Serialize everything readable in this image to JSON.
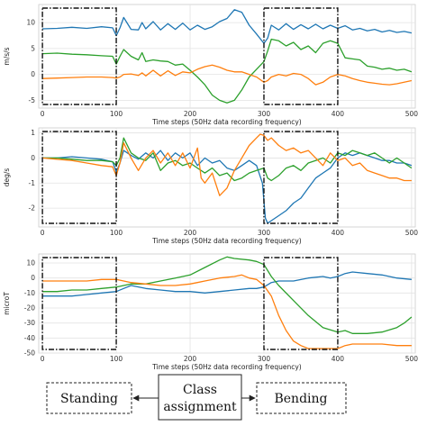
{
  "chart_data": [
    {
      "type": "line",
      "xlabel": "Time steps (50Hz data recording frequency)",
      "ylabel": "m/s/s",
      "xlim": [
        -5,
        505
      ],
      "ylim": [
        -6.5,
        13.5
      ],
      "xticks": [
        0,
        100,
        200,
        300,
        400,
        500
      ],
      "yticks": [
        -5,
        0,
        5,
        10
      ],
      "grid": true,
      "series": [
        {
          "color": "#1f77b4",
          "x": [
            0,
            20,
            40,
            60,
            80,
            95,
            100,
            105,
            110,
            120,
            130,
            135,
            140,
            150,
            160,
            170,
            180,
            190,
            200,
            210,
            220,
            230,
            240,
            250,
            260,
            270,
            280,
            290,
            300,
            305,
            310,
            320,
            330,
            340,
            350,
            360,
            370,
            380,
            390,
            400,
            410,
            420,
            430,
            440,
            450,
            460,
            470,
            480,
            490,
            500
          ],
          "y": [
            8.8,
            8.9,
            9.1,
            8.9,
            9.2,
            9.0,
            7.5,
            9.0,
            11.0,
            8.7,
            8.6,
            10.0,
            8.8,
            10.2,
            8.6,
            9.8,
            8.7,
            9.9,
            8.6,
            9.5,
            8.7,
            9.2,
            10.2,
            10.8,
            12.5,
            12.0,
            9.5,
            7.8,
            6.0,
            7.0,
            9.5,
            8.6,
            9.8,
            8.7,
            9.6,
            8.8,
            9.7,
            8.8,
            9.5,
            8.9,
            9.4,
            8.6,
            8.9,
            8.4,
            8.7,
            8.2,
            8.5,
            8.1,
            8.3,
            8.0
          ]
        },
        {
          "color": "#2ca02c",
          "x": [
            0,
            20,
            40,
            60,
            80,
            95,
            100,
            105,
            110,
            120,
            130,
            135,
            140,
            150,
            160,
            170,
            180,
            190,
            200,
            210,
            220,
            230,
            240,
            250,
            260,
            270,
            280,
            290,
            300,
            305,
            310,
            320,
            330,
            340,
            350,
            360,
            370,
            380,
            390,
            400,
            410,
            420,
            430,
            440,
            450,
            460,
            470,
            480,
            490,
            500
          ],
          "y": [
            4.0,
            4.1,
            3.9,
            3.8,
            3.6,
            3.5,
            2.0,
            3.5,
            4.8,
            3.5,
            2.8,
            4.2,
            2.5,
            2.8,
            2.6,
            2.5,
            1.8,
            2.0,
            0.8,
            -0.5,
            -2.0,
            -4.0,
            -5.0,
            -5.5,
            -5.0,
            -3.0,
            -0.5,
            1.0,
            2.5,
            4.5,
            6.8,
            6.5,
            5.5,
            6.2,
            4.8,
            5.5,
            4.2,
            6.0,
            6.5,
            6.0,
            3.2,
            3.0,
            2.8,
            1.6,
            1.4,
            1.0,
            1.2,
            0.8,
            1.0,
            0.5
          ]
        },
        {
          "color": "#ff7f0e",
          "x": [
            0,
            20,
            40,
            60,
            80,
            95,
            100,
            105,
            110,
            120,
            130,
            135,
            140,
            150,
            160,
            170,
            180,
            190,
            200,
            210,
            220,
            230,
            240,
            250,
            260,
            270,
            280,
            290,
            300,
            305,
            310,
            320,
            330,
            340,
            350,
            360,
            370,
            380,
            390,
            400,
            410,
            420,
            430,
            440,
            450,
            460,
            470,
            480,
            490,
            500
          ],
          "y": [
            -0.8,
            -0.7,
            -0.6,
            -0.5,
            -0.5,
            -0.6,
            -0.7,
            -0.5,
            0.0,
            0.1,
            -0.2,
            0.3,
            -0.3,
            0.8,
            -0.3,
            0.7,
            -0.2,
            0.5,
            0.3,
            1.0,
            1.5,
            1.8,
            1.4,
            0.8,
            0.5,
            0.5,
            0.0,
            -0.5,
            -1.5,
            -1.2,
            -0.5,
            0.0,
            -0.3,
            0.2,
            0.0,
            -0.8,
            -2.0,
            -1.5,
            -0.5,
            0.0,
            -0.3,
            -0.8,
            -1.2,
            -1.5,
            -1.7,
            -1.9,
            -2.0,
            -1.8,
            -1.5,
            -1.2
          ]
        }
      ]
    },
    {
      "type": "line",
      "xlabel": "Time steps (50Hz data recording frequency)",
      "ylabel": "deg/s",
      "xlim": [
        -5,
        505
      ],
      "ylim": [
        -2.75,
        1.2
      ],
      "xticks": [
        0,
        100,
        200,
        300,
        400,
        500
      ],
      "yticks": [
        -2,
        -1,
        0,
        1
      ],
      "grid": true,
      "series": [
        {
          "color": "#1f77b4",
          "x": [
            0,
            20,
            40,
            60,
            80,
            95,
            100,
            105,
            110,
            120,
            130,
            140,
            150,
            160,
            170,
            180,
            190,
            200,
            210,
            220,
            230,
            240,
            250,
            260,
            270,
            280,
            290,
            298,
            302,
            305,
            310,
            320,
            330,
            340,
            350,
            360,
            370,
            380,
            390,
            400,
            410,
            420,
            430,
            440,
            450,
            460,
            470,
            480,
            490,
            500
          ],
          "y": [
            0.0,
            0.0,
            0.05,
            0.0,
            -0.05,
            -0.15,
            -0.55,
            -0.2,
            0.3,
            0.1,
            -0.05,
            0.2,
            0.0,
            0.3,
            -0.1,
            0.2,
            0.0,
            0.2,
            -0.3,
            0.0,
            -0.2,
            -0.1,
            -0.4,
            -0.5,
            -0.3,
            -0.1,
            -0.3,
            -1.0,
            -2.4,
            -2.6,
            -2.5,
            -2.3,
            -2.1,
            -1.8,
            -1.6,
            -1.2,
            -0.8,
            -0.6,
            -0.4,
            0.0,
            0.2,
            0.1,
            0.2,
            0.1,
            0.0,
            -0.1,
            -0.1,
            -0.2,
            -0.2,
            -0.3
          ]
        },
        {
          "color": "#2ca02c",
          "x": [
            0,
            20,
            40,
            60,
            80,
            95,
            100,
            105,
            110,
            120,
            130,
            140,
            150,
            160,
            170,
            180,
            190,
            200,
            210,
            220,
            230,
            240,
            250,
            260,
            270,
            280,
            290,
            300,
            305,
            310,
            320,
            330,
            340,
            350,
            360,
            370,
            380,
            390,
            400,
            410,
            420,
            430,
            440,
            450,
            460,
            470,
            480,
            490,
            500
          ],
          "y": [
            0.0,
            0.0,
            -0.05,
            -0.1,
            -0.1,
            -0.15,
            -0.3,
            0.0,
            0.8,
            0.2,
            0.0,
            -0.1,
            0.2,
            -0.5,
            -0.2,
            -0.1,
            -0.3,
            -0.2,
            -0.4,
            -0.6,
            -0.4,
            -0.7,
            -0.6,
            -0.9,
            -0.8,
            -0.6,
            -0.5,
            -0.4,
            -0.8,
            -0.9,
            -0.7,
            -0.4,
            -0.3,
            -0.5,
            -0.2,
            -0.1,
            0.0,
            -0.2,
            0.2,
            0.1,
            0.3,
            0.2,
            0.1,
            0.2,
            0.0,
            -0.2,
            0.0,
            -0.2,
            -0.4
          ]
        },
        {
          "color": "#ff7f0e",
          "x": [
            0,
            20,
            40,
            60,
            80,
            95,
            100,
            105,
            110,
            120,
            130,
            140,
            150,
            160,
            170,
            180,
            190,
            200,
            210,
            215,
            220,
            230,
            240,
            250,
            260,
            270,
            280,
            290,
            295,
            300,
            305,
            310,
            320,
            330,
            340,
            350,
            360,
            370,
            380,
            390,
            400,
            410,
            420,
            430,
            440,
            450,
            460,
            470,
            480,
            490,
            500
          ],
          "y": [
            0.0,
            -0.05,
            -0.1,
            -0.2,
            -0.3,
            -0.35,
            -0.7,
            -0.2,
            0.6,
            0.0,
            -0.5,
            0.0,
            0.3,
            -0.2,
            0.2,
            -0.3,
            0.2,
            -0.4,
            0.4,
            -0.8,
            -1.0,
            -0.6,
            -1.5,
            -1.2,
            -0.5,
            0.0,
            0.5,
            0.8,
            0.95,
            0.9,
            0.7,
            0.8,
            0.5,
            0.3,
            0.4,
            0.2,
            0.3,
            0.0,
            -0.3,
            0.2,
            -0.1,
            0.0,
            -0.3,
            -0.2,
            -0.5,
            -0.6,
            -0.7,
            -0.8,
            -0.8,
            -0.9,
            -0.9
          ]
        }
      ]
    },
    {
      "type": "line",
      "xlabel": "Time steps (50Hz data recording frequency)",
      "ylabel": "microT",
      "xlim": [
        -5,
        505
      ],
      "ylim": [
        -50,
        16
      ],
      "xticks": [
        0,
        100,
        200,
        300,
        400,
        500
      ],
      "yticks": [
        -50,
        -40,
        -30,
        -20,
        -10,
        0,
        10
      ],
      "grid": true,
      "series": [
        {
          "color": "#1f77b4",
          "x": [
            0,
            20,
            40,
            60,
            80,
            100,
            110,
            120,
            140,
            160,
            180,
            200,
            220,
            240,
            260,
            280,
            290,
            300,
            310,
            320,
            340,
            360,
            380,
            390,
            400,
            410,
            420,
            440,
            460,
            480,
            500
          ],
          "y": [
            -12,
            -12,
            -12,
            -11,
            -10,
            -9,
            -7,
            -5,
            -7,
            -8,
            -9,
            -9,
            -10,
            -9,
            -8,
            -7,
            -7,
            -6,
            -3,
            -2,
            -2,
            0,
            1,
            0,
            1,
            3,
            4,
            3,
            2,
            0,
            -1
          ]
        },
        {
          "color": "#2ca02c",
          "x": [
            0,
            20,
            40,
            60,
            80,
            100,
            110,
            120,
            140,
            160,
            180,
            200,
            220,
            240,
            250,
            260,
            280,
            290,
            300,
            310,
            320,
            340,
            360,
            380,
            400,
            410,
            420,
            440,
            460,
            480,
            490,
            500
          ],
          "y": [
            -9,
            -9,
            -8,
            -8,
            -7,
            -6,
            -5,
            -4,
            -4,
            -2,
            0,
            2,
            7,
            12,
            14,
            13,
            12,
            11,
            9,
            1,
            -5,
            -15,
            -25,
            -33,
            -36,
            -35,
            -37,
            -37,
            -36,
            -33,
            -30,
            -26
          ]
        },
        {
          "color": "#ff7f0e",
          "x": [
            0,
            20,
            40,
            60,
            80,
            100,
            110,
            120,
            140,
            160,
            180,
            200,
            210,
            220,
            240,
            260,
            270,
            280,
            290,
            300,
            310,
            320,
            330,
            340,
            350,
            360,
            380,
            400,
            410,
            420,
            440,
            460,
            480,
            500
          ],
          "y": [
            -2,
            -2,
            -2,
            -2,
            -1,
            -1,
            -2,
            -3,
            -4,
            -5,
            -5,
            -4,
            -3,
            -2,
            0,
            1,
            2,
            0,
            -1,
            -5,
            -12,
            -25,
            -35,
            -42,
            -45,
            -47,
            -47,
            -47,
            -45,
            -44,
            -44,
            -44,
            -45,
            -45
          ]
        }
      ]
    }
  ],
  "boxes": [
    {
      "x0": 0,
      "x1": 100
    },
    {
      "x0": 300,
      "x1": 400
    }
  ],
  "flow": {
    "center_label": [
      "Class",
      "assignment"
    ],
    "left_label": "Standing",
    "right_label": "Bending"
  }
}
